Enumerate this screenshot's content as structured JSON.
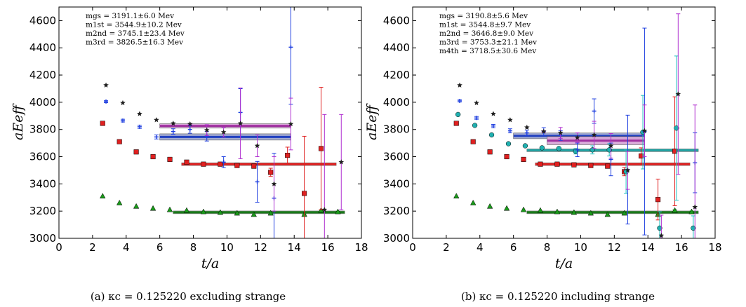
{
  "chart_data": [
    {
      "type": "scatter",
      "caption": "(a) κc = 0.125220 excluding strange",
      "xlabel": "t/a",
      "ylabel": "aEeff",
      "xlim": [
        0,
        18
      ],
      "ylim": [
        3000,
        4700
      ],
      "xticks": [
        0,
        2,
        4,
        6,
        8,
        10,
        12,
        14,
        16,
        18
      ],
      "yticks": [
        3000,
        3200,
        3400,
        3600,
        3800,
        4000,
        4200,
        4400,
        4600
      ],
      "annotations": [
        "mgs = 3191.1±6.0 Mev",
        "m1st = 3544.9±10.2 Mev",
        "m2nd = 3745.1±23.4 Mev",
        "m3rd = 3826.5±16.3 Mev"
      ],
      "fits": [
        {
          "color": "#1a7a1a",
          "band": "#9bd49b",
          "x0": 6.8,
          "x1": 17,
          "value": 3191,
          "err": 6
        },
        {
          "color": "#e02020",
          "band": "#f0a0a0",
          "x0": 7.3,
          "x1": 16.5,
          "value": 3545,
          "err": 10
        },
        {
          "color": "#2040c0",
          "band": "#a0a8d0",
          "x0": 6.0,
          "x1": 13.8,
          "value": 3745,
          "err": 23
        },
        {
          "color": "#a030a0",
          "band": "#d8a8d8",
          "x0": 6.0,
          "x1": 13.8,
          "value": 3826,
          "err": 16
        }
      ],
      "series": [
        {
          "marker": "triangle",
          "color": "#1a9a1a",
          "err_color": "#1a9a1a",
          "points": [
            [
              2.6,
              3310,
              0
            ],
            [
              3.6,
              3260,
              0
            ],
            [
              4.6,
              3235,
              0
            ],
            [
              5.6,
              3220,
              0
            ],
            [
              6.6,
              3210,
              0
            ],
            [
              7.6,
              3205,
              0
            ],
            [
              8.6,
              3195,
              0
            ],
            [
              9.6,
              3190,
              0
            ],
            [
              10.6,
              3185,
              0
            ],
            [
              11.6,
              3175,
              0
            ],
            [
              12.6,
              3185,
              6
            ],
            [
              14.6,
              3175,
              5
            ],
            [
              15.6,
              3205,
              5
            ],
            [
              16.6,
              3195,
              5
            ]
          ]
        },
        {
          "marker": "square",
          "color": "#e02020",
          "err_color": "#e02020",
          "points": [
            [
              2.6,
              3845,
              0
            ],
            [
              3.6,
              3710,
              0
            ],
            [
              4.6,
              3635,
              0
            ],
            [
              5.6,
              3600,
              0
            ],
            [
              6.6,
              3580,
              0
            ],
            [
              7.6,
              3560,
              0
            ],
            [
              8.6,
              3545,
              0
            ],
            [
              9.6,
              3545,
              0
            ],
            [
              10.6,
              3535,
              0
            ],
            [
              11.6,
              3530,
              0
            ],
            [
              12.6,
              3485,
              30
            ],
            [
              13.6,
              3610,
              60
            ],
            [
              14.6,
              3330,
              420
            ],
            [
              15.6,
              3660,
              450
            ]
          ]
        },
        {
          "marker": "plus",
          "color": "#2040e0",
          "err_color": "#2040e0",
          "points": [
            [
              2.8,
              4005,
              8
            ],
            [
              3.8,
              3865,
              10
            ],
            [
              4.8,
              3820,
              12
            ],
            [
              5.8,
              3745,
              15
            ],
            [
              6.8,
              3785,
              20
            ],
            [
              7.8,
              3800,
              28
            ],
            [
              8.8,
              3750,
              35
            ],
            [
              9.8,
              3560,
              40
            ],
            [
              10.8,
              3925,
              175
            ],
            [
              11.8,
              3415,
              150
            ],
            [
              12.8,
              3295,
              330
            ],
            [
              13.8,
              4405,
              420
            ]
          ]
        },
        {
          "marker": "star",
          "color": "#202020",
          "err_color": "#b030d0",
          "points": [
            [
              2.8,
              4125,
              0
            ],
            [
              3.8,
              3995,
              0
            ],
            [
              4.8,
              3915,
              0
            ],
            [
              5.8,
              3870,
              0
            ],
            [
              6.8,
              3845,
              0
            ],
            [
              7.8,
              3840,
              5
            ],
            [
              8.8,
              3795,
              40
            ],
            [
              9.8,
              3780,
              35
            ],
            [
              10.8,
              3845,
              260
            ],
            [
              11.8,
              3680,
              80
            ],
            [
              12.8,
              3400,
              200
            ],
            [
              13.8,
              3840,
              190
            ],
            [
              15.8,
              3210,
              700
            ],
            [
              16.8,
              3560,
              350
            ]
          ]
        }
      ]
    },
    {
      "type": "scatter",
      "caption": "(b) κc = 0.125220 including strange",
      "xlabel": "t/a",
      "ylabel": "aEeff",
      "xlim": [
        0,
        18
      ],
      "ylim": [
        3000,
        4700
      ],
      "xticks": [
        0,
        2,
        4,
        6,
        8,
        10,
        12,
        14,
        16,
        18
      ],
      "yticks": [
        3000,
        3200,
        3400,
        3600,
        3800,
        4000,
        4200,
        4400,
        4600
      ],
      "annotations": [
        "mgs = 3190.8±5.6 Mev",
        "m1st = 3544.8±9.7 Mev",
        "m2nd = 3646.8±9.0 Mev",
        "m3rd = 3753.3±21.1 Mev",
        "m4th = 3718.5±30.6 Mev"
      ],
      "fits": [
        {
          "color": "#1a7a1a",
          "band": "#9bd49b",
          "x0": 6.8,
          "x1": 17,
          "value": 3191,
          "err": 6
        },
        {
          "color": "#e02020",
          "band": "#f0a0a0",
          "x0": 7.3,
          "x1": 16.5,
          "value": 3545,
          "err": 10
        },
        {
          "color": "#20a0a0",
          "band": "#90d8d8",
          "x0": 6.8,
          "x1": 17,
          "value": 3647,
          "err": 9
        },
        {
          "color": "#2040c0",
          "band": "#a0a8d0",
          "x0": 6.0,
          "x1": 13.8,
          "value": 3753,
          "err": 21
        },
        {
          "color": "#a030a0",
          "band": "#d8a8d8",
          "x0": 8.0,
          "x1": 13.8,
          "value": 3718,
          "err": 30
        }
      ],
      "series": [
        {
          "marker": "triangle",
          "color": "#1a9a1a",
          "err_color": "#1a9a1a",
          "points": [
            [
              2.6,
              3310,
              0
            ],
            [
              3.6,
              3260,
              0
            ],
            [
              4.6,
              3235,
              0
            ],
            [
              5.6,
              3220,
              0
            ],
            [
              6.6,
              3210,
              0
            ],
            [
              7.6,
              3205,
              0
            ],
            [
              8.6,
              3195,
              0
            ],
            [
              9.6,
              3190,
              0
            ],
            [
              10.6,
              3185,
              0
            ],
            [
              11.6,
              3175,
              0
            ],
            [
              12.6,
              3185,
              6
            ],
            [
              14.6,
              3175,
              5
            ],
            [
              15.6,
              3205,
              5
            ],
            [
              16.6,
              3195,
              5
            ]
          ]
        },
        {
          "marker": "square",
          "color": "#e02020",
          "err_color": "#e02020",
          "points": [
            [
              2.6,
              3845,
              0
            ],
            [
              3.6,
              3710,
              0
            ],
            [
              4.6,
              3635,
              0
            ],
            [
              5.6,
              3600,
              0
            ],
            [
              6.6,
              3580,
              0
            ],
            [
              7.6,
              3545,
              0
            ],
            [
              8.6,
              3545,
              0
            ],
            [
              9.6,
              3540,
              0
            ],
            [
              10.6,
              3535,
              0
            ],
            [
              11.6,
              3530,
              0
            ],
            [
              12.6,
              3490,
              30
            ],
            [
              13.6,
              3605,
              60
            ],
            [
              14.6,
              3285,
              150
            ],
            [
              15.6,
              3640,
              400
            ]
          ]
        },
        {
          "marker": "circle",
          "color": "#20b0b0",
          "err_color": "#20c0c0",
          "points": [
            [
              2.7,
              3910,
              0
            ],
            [
              3.7,
              3830,
              0
            ],
            [
              4.7,
              3760,
              0
            ],
            [
              5.7,
              3695,
              0
            ],
            [
              6.7,
              3680,
              0
            ],
            [
              7.7,
              3665,
              0
            ],
            [
              8.7,
              3660,
              0
            ],
            [
              9.7,
              3640,
              20
            ],
            [
              10.7,
              3650,
              30
            ],
            [
              11.7,
              3650,
              45
            ],
            [
              12.7,
              3490,
              160
            ],
            [
              13.7,
              3780,
              270
            ],
            [
              14.7,
              3075,
              120
            ],
            [
              15.7,
              3810,
              530
            ],
            [
              16.7,
              3075,
              90
            ]
          ]
        },
        {
          "marker": "plus",
          "color": "#2040e0",
          "err_color": "#2040e0",
          "points": [
            [
              2.8,
              4010,
              8
            ],
            [
              3.8,
              3885,
              10
            ],
            [
              4.8,
              3825,
              12
            ],
            [
              5.8,
              3790,
              15
            ],
            [
              6.8,
              3775,
              20
            ],
            [
              7.8,
              3785,
              28
            ],
            [
              8.8,
              3755,
              35
            ],
            [
              9.8,
              3650,
              50
            ],
            [
              10.8,
              3935,
              90
            ],
            [
              11.8,
              3580,
              120
            ],
            [
              12.8,
              3505,
              400
            ],
            [
              13.8,
              3785,
              760
            ],
            [
              16.8,
              3555,
              220
            ]
          ]
        },
        {
          "marker": "star",
          "color": "#202020",
          "err_color": "#b030d0",
          "points": [
            [
              2.8,
              4125,
              0
            ],
            [
              3.8,
              3995,
              0
            ],
            [
              4.8,
              3915,
              0
            ],
            [
              5.8,
              3870,
              0
            ],
            [
              6.8,
              3815,
              0
            ],
            [
              7.8,
              3785,
              5
            ],
            [
              8.8,
              3775,
              40
            ],
            [
              9.8,
              3740,
              35
            ],
            [
              10.8,
              3760,
              100
            ],
            [
              11.8,
              3680,
              90
            ],
            [
              12.8,
              3500,
              140
            ],
            [
              13.8,
              3790,
              190
            ],
            [
              14.8,
              3020,
              150
            ],
            [
              15.8,
              4060,
              590
            ],
            [
              16.8,
              3230,
              750
            ]
          ]
        }
      ]
    }
  ]
}
